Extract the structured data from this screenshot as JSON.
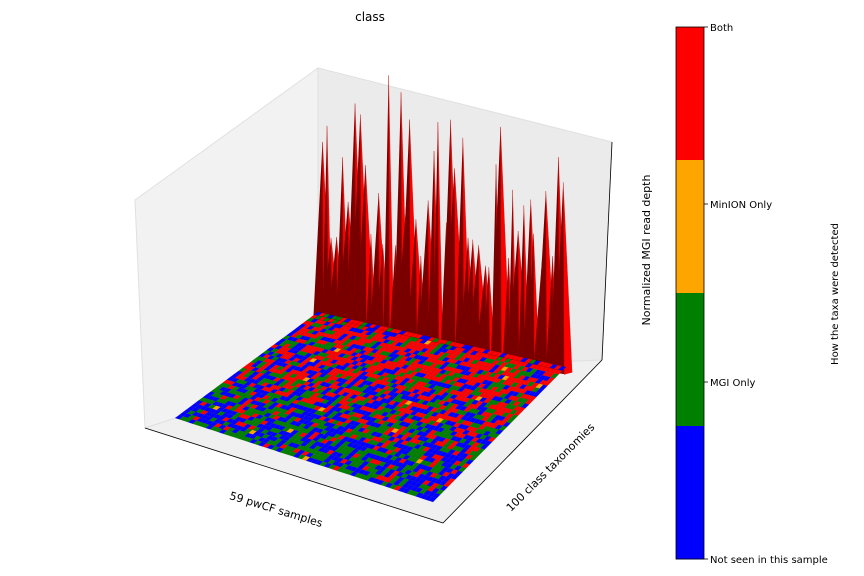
{
  "chart_data": {
    "type": "surface-3d",
    "title": "class",
    "xlabel": "59 pwCF samples",
    "ylabel": "100 class taxonomies",
    "zlabel": "Normalized MGI read depth",
    "grid": false,
    "n_samples": 59,
    "n_taxa": 100,
    "colorbar": {
      "label": "How the taxa were detected",
      "ticks": [
        "Not seen in this sample",
        "MGI Only",
        "MinION Only",
        "Both"
      ],
      "colors": [
        "#0000ff",
        "#008000",
        "#ffa500",
        "#ff0000"
      ]
    }
  }
}
